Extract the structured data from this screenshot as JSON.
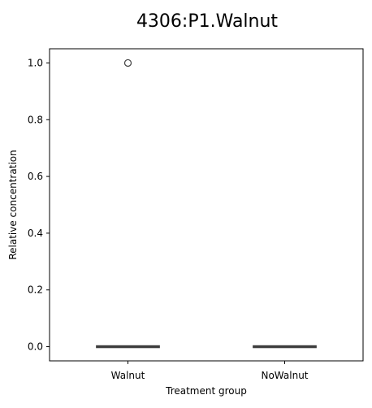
{
  "chart_data": {
    "type": "box",
    "title": "4306:P1.Walnut",
    "xlabel": "Treatment group",
    "ylabel": "Relative concentration",
    "categories": [
      "Walnut",
      "NoWalnut"
    ],
    "ylim": [
      -0.05,
      1.05
    ],
    "yticks": [
      0.0,
      0.2,
      0.4,
      0.6,
      0.8,
      1.0
    ],
    "ytick_labels": [
      "0.0",
      "0.2",
      "0.4",
      "0.6",
      "0.8",
      "1.0"
    ],
    "grid": false,
    "boxes": [
      {
        "category": "Walnut",
        "q1": 0.0,
        "median": 0.0,
        "q3": 0.0,
        "whisker_low": 0.0,
        "whisker_high": 0.0,
        "outliers": [
          1.0
        ]
      },
      {
        "category": "NoWalnut",
        "q1": 0.0,
        "median": 0.0,
        "q3": 0.0,
        "whisker_low": 0.0,
        "whisker_high": 0.0,
        "outliers": []
      }
    ],
    "colors": {
      "box_line": "#3d3d3d",
      "axis": "#000000",
      "outlier_edge": "#3d3d3d"
    }
  }
}
